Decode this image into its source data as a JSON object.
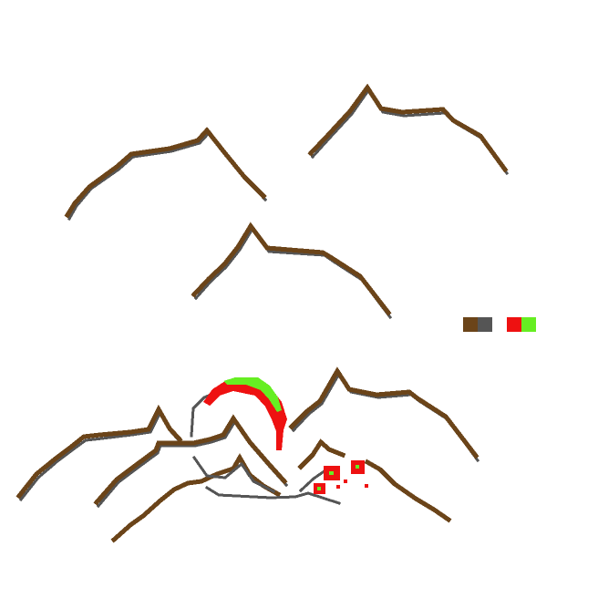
{
  "palette": {
    "background": "#ffffff",
    "brown": "#6b4419",
    "gray": "#555555",
    "red": "#ee1111",
    "green": "#66ee22"
  },
  "swatches": [
    {
      "name": "brown-swatch",
      "color": "#6b4419"
    },
    {
      "name": "gray-swatch",
      "color": "#555555"
    },
    {
      "name": "red-swatch",
      "color": "#ee1111"
    },
    {
      "name": "green-swatch",
      "color": "#66ee22"
    }
  ]
}
